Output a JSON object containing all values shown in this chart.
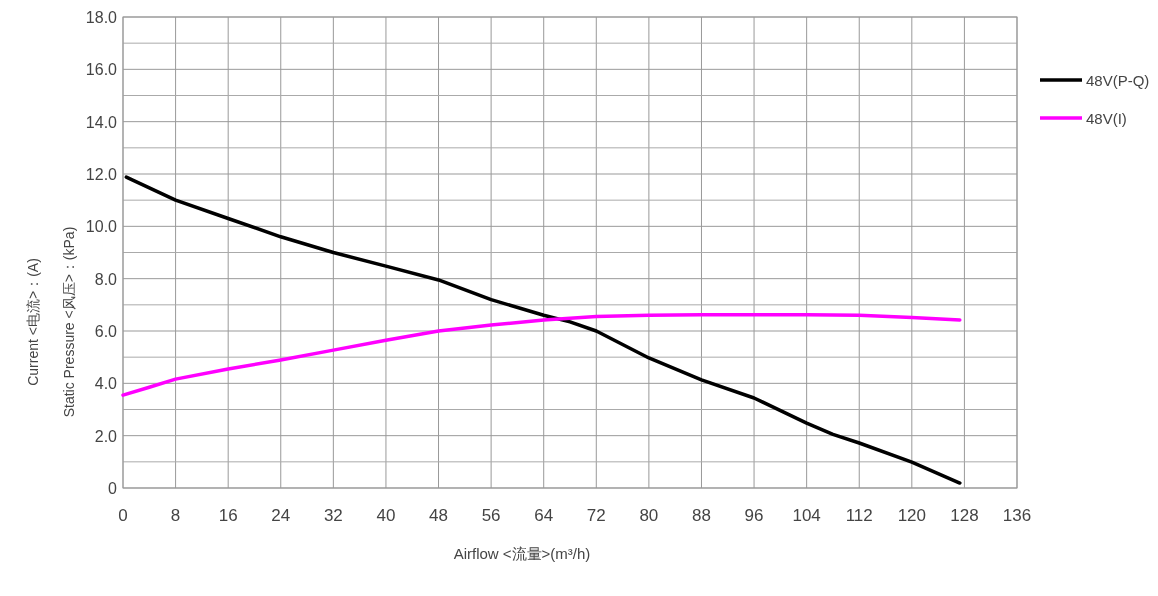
{
  "chart_data": {
    "type": "line",
    "xlabel": "Airflow <流量>(m³/h)",
    "ylabel": "Current <电流>：(A)\nStatic Pressure <风压>：(kPa)",
    "xlim": [
      0,
      136
    ],
    "ylim": [
      0,
      18
    ],
    "xticks": [
      0,
      8,
      16,
      24,
      32,
      40,
      48,
      56,
      64,
      72,
      80,
      88,
      96,
      104,
      112,
      120,
      128,
      136
    ],
    "yticks": [
      0,
      {
        "value": 2,
        "label": "2.0"
      },
      {
        "value": 4,
        "label": "4.0"
      },
      {
        "value": 6,
        "label": "6.0"
      },
      {
        "value": 8,
        "label": "8.0"
      },
      {
        "value": 10,
        "label": "10.0"
      },
      {
        "value": 12,
        "label": "12.0"
      },
      {
        "value": 14,
        "label": "14.0"
      },
      {
        "value": 16,
        "label": "16.0"
      },
      {
        "value": 18,
        "label": "18.0"
      }
    ],
    "grid": true,
    "legend": "top right",
    "series": [
      {
        "name": "48V(P-Q)",
        "color": "#000000",
        "x": [
          0.5,
          8,
          16,
          24,
          32,
          40,
          48,
          56,
          64,
          68,
          72,
          80,
          88,
          96,
          104,
          108,
          112,
          120,
          127.3
        ],
        "values": [
          11.88,
          11.0,
          10.3,
          9.6,
          9.0,
          8.48,
          7.95,
          7.2,
          6.6,
          6.35,
          6.0,
          4.97,
          4.13,
          3.44,
          2.48,
          2.05,
          1.72,
          0.99,
          0.19
        ]
      },
      {
        "name": "48V(I)",
        "color": "#ff00ff",
        "x": [
          0,
          4,
          8,
          16,
          24,
          32,
          40,
          48,
          56,
          64,
          72,
          80,
          88,
          96,
          104,
          112,
          120,
          127.3
        ],
        "values": [
          3.55,
          3.85,
          4.16,
          4.55,
          4.89,
          5.27,
          5.65,
          6.0,
          6.23,
          6.42,
          6.55,
          6.6,
          6.62,
          6.62,
          6.62,
          6.6,
          6.52,
          6.42
        ]
      }
    ]
  }
}
